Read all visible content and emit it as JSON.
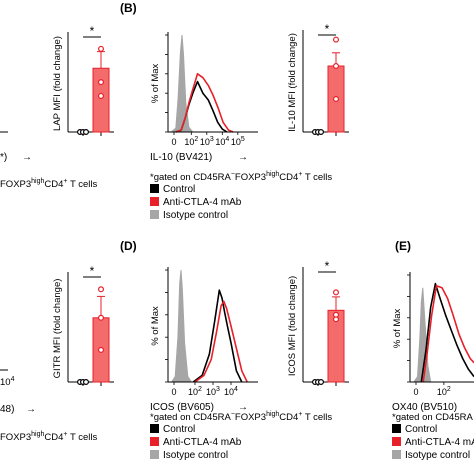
{
  "colors": {
    "control": "#000000",
    "anti": "#e8202a",
    "isotype": "#a6a6a6",
    "bar_fill": "#f36b6b",
    "bar_edge": "#e8202a"
  },
  "legend": {
    "control": "Control",
    "anti": "Anti-CTLA-4 mAb",
    "isotype": "Isotype control"
  },
  "left_fragments": {
    "top_axis_tail": "*)",
    "top_arrow": "→",
    "top_gate": "FOXP3",
    "top_gate_sup": "high",
    "top_gate_tail": "CD4",
    "top_gate_sup2": "+",
    "top_gate_end": " T cells",
    "bottom_tick": "10",
    "bottom_tick_sup": "4",
    "bottom_axis_tail": "48)",
    "bottom_arrow": "→",
    "bottom_gate": "FOXP3",
    "bottom_gate_sup": "high",
    "bottom_gate_tail": "CD4",
    "bottom_gate_sup2": "+",
    "bottom_gate_end": " T cells"
  },
  "chart_data": [
    {
      "type": "bar",
      "ylabel": "LAP MFI (fold change)",
      "categories": [
        "Control",
        "Anti-CTLA-4 mAb"
      ],
      "values": [
        1.0,
        1.23
      ],
      "error": [
        0.0,
        0.06
      ],
      "points": [
        [
          1.0,
          1.0,
          1.0
        ],
        [
          1.18,
          1.3,
          1.13
        ]
      ],
      "significance": "*",
      "ylim": [
        1.0,
        1.35
      ]
    },
    {
      "type": "line",
      "panel": "(B)",
      "marker": "IL-10",
      "ylabel": "% of Max",
      "xlabel": "IL-10  (BV421)",
      "arrow": "→",
      "xticks": [
        {
          "base": "0",
          "exp": ""
        },
        {
          "base": "10",
          "exp": "2"
        },
        {
          "base": "10",
          "exp": "3"
        },
        {
          "base": "10",
          "exp": "4"
        },
        {
          "base": "10",
          "exp": "5"
        }
      ],
      "gate": {
        "prefix": "*gated on CD45RA",
        "minus": "−",
        "foxp3": "FOXP3",
        "high": "high",
        "cd4": "CD4",
        "plus": "+",
        "tail": " T cells"
      },
      "series": [
        {
          "name": "Isotype control",
          "points": [
            [
              -0.3,
              0
            ],
            [
              0.0,
              0.04
            ],
            [
              0.15,
              0.35
            ],
            [
              0.3,
              0.82
            ],
            [
              0.4,
              1.0
            ],
            [
              0.5,
              0.8
            ],
            [
              0.65,
              0.3
            ],
            [
              0.85,
              0.05
            ],
            [
              1.1,
              0
            ]
          ]
        },
        {
          "name": "Control",
          "points": [
            [
              0.0,
              0
            ],
            [
              0.35,
              0.02
            ],
            [
              0.6,
              0.14
            ],
            [
              0.85,
              0.28
            ],
            [
              1.1,
              0.4
            ],
            [
              1.4,
              0.52
            ],
            [
              1.75,
              0.4
            ],
            [
              2.1,
              0.33
            ],
            [
              2.4,
              0.22
            ],
            [
              2.7,
              0.1
            ],
            [
              3.0,
              0.03
            ],
            [
              3.3,
              0
            ]
          ]
        },
        {
          "name": "Anti-CTLA-4 mAb",
          "points": [
            [
              0.0,
              0
            ],
            [
              0.35,
              0.02
            ],
            [
              0.6,
              0.14
            ],
            [
              0.85,
              0.3
            ],
            [
              1.1,
              0.44
            ],
            [
              1.4,
              0.6
            ],
            [
              1.75,
              0.56
            ],
            [
              2.1,
              0.48
            ],
            [
              2.4,
              0.38
            ],
            [
              2.75,
              0.24
            ],
            [
              3.05,
              0.1
            ],
            [
              3.4,
              0.02
            ],
            [
              3.7,
              0
            ]
          ]
        }
      ]
    },
    {
      "type": "bar",
      "ylabel": "IL-10 MFI (fold change)",
      "categories": [
        "Control",
        "Anti-CTLA-4 mAb"
      ],
      "values": [
        1.0,
        1.3
      ],
      "error": [
        0.0,
        0.06
      ],
      "points": [
        [
          1.0,
          1.0,
          1.0
        ],
        [
          1.42,
          1.3,
          1.15
        ]
      ],
      "significance": "*",
      "ylim": [
        1.0,
        1.45
      ]
    },
    {
      "type": "bar",
      "ylabel": "GITR MFI (fold change)",
      "categories": [
        "Control",
        "Anti-CTLA-4 mAb"
      ],
      "values": [
        1.0,
        1.18
      ],
      "error": [
        0.0,
        0.06
      ],
      "points": [
        [
          1.0,
          1.0,
          1.0
        ],
        [
          1.26,
          1.18,
          1.09
        ]
      ],
      "significance": "*",
      "ylim": [
        1.0,
        1.3
      ]
    },
    {
      "type": "line",
      "panel": "(D)",
      "marker": "ICOS",
      "ylabel": "% of Max",
      "xlabel": "ICOS  (BV605)",
      "arrow": "→",
      "xticks": [
        {
          "base": "0",
          "exp": ""
        },
        {
          "base": "10",
          "exp": "2"
        },
        {
          "base": "10",
          "exp": "3"
        },
        {
          "base": "10",
          "exp": "4"
        }
      ],
      "gate": {
        "prefix": "*gated on CD45RA",
        "minus": "−",
        "foxp3": "FOXP3",
        "high": "high",
        "cd4": "CD4",
        "plus": "+",
        "tail": " T cells"
      },
      "series": [
        {
          "name": "Isotype control",
          "points": [
            [
              -0.3,
              0
            ],
            [
              -0.1,
              0.05
            ],
            [
              0.05,
              0.4
            ],
            [
              0.15,
              0.88
            ],
            [
              0.22,
              1.0
            ],
            [
              0.3,
              0.82
            ],
            [
              0.42,
              0.35
            ],
            [
              0.6,
              0.05
            ],
            [
              0.8,
              0
            ]
          ]
        },
        {
          "name": "Control",
          "points": [
            [
              0.9,
              0
            ],
            [
              1.4,
              0.06
            ],
            [
              1.8,
              0.25
            ],
            [
              2.1,
              0.55
            ],
            [
              2.35,
              0.82
            ],
            [
              2.5,
              0.75
            ],
            [
              2.65,
              0.62
            ],
            [
              2.8,
              0.5
            ],
            [
              3.0,
              0.35
            ],
            [
              3.3,
              0.1
            ],
            [
              3.6,
              0
            ]
          ]
        },
        {
          "name": "Anti-CTLA-4 mAb",
          "points": [
            [
              1.0,
              0
            ],
            [
              1.5,
              0.06
            ],
            [
              1.9,
              0.2
            ],
            [
              2.2,
              0.45
            ],
            [
              2.45,
              0.68
            ],
            [
              2.6,
              0.72
            ],
            [
              2.75,
              0.66
            ],
            [
              3.0,
              0.5
            ],
            [
              3.3,
              0.3
            ],
            [
              3.6,
              0.1
            ],
            [
              3.9,
              0
            ]
          ]
        }
      ]
    },
    {
      "type": "bar",
      "ylabel": "ICOS MFI (fold change)",
      "categories": [
        "Control",
        "Anti-CTLA-4 mAb"
      ],
      "values": [
        1.0,
        1.16
      ],
      "error": [
        0.0,
        0.03
      ],
      "points": [
        [
          1.0,
          1.0,
          1.0
        ],
        [
          1.2,
          1.15,
          1.14
        ]
      ],
      "significance": "*",
      "ylim": [
        1.0,
        1.25
      ]
    },
    {
      "type": "line",
      "panel": "(E)",
      "marker": "OX40",
      "ylabel": "% of Max",
      "xlabel": "OX40  (BV510)",
      "arrow": "",
      "xticks": [
        {
          "base": "0",
          "exp": ""
        },
        {
          "base": "10",
          "exp": "2"
        }
      ],
      "gate": {
        "prefix": "*gated on CD45RA",
        "minus": "",
        "foxp3": "",
        "high": "",
        "cd4": "",
        "plus": "",
        "tail": ""
      },
      "series": [
        {
          "name": "Isotype control",
          "points": [
            [
              -0.6,
              0
            ],
            [
              -0.4,
              0.05
            ],
            [
              -0.28,
              0.4
            ],
            [
              -0.2,
              0.75
            ],
            [
              -0.12,
              0.88
            ],
            [
              -0.02,
              0.6
            ],
            [
              0.15,
              0.15
            ],
            [
              0.3,
              0
            ]
          ]
        },
        {
          "name": "Control",
          "points": [
            [
              -0.2,
              0
            ],
            [
              0.05,
              0.3
            ],
            [
              0.3,
              0.7
            ],
            [
              0.55,
              0.92
            ],
            [
              0.8,
              0.78
            ],
            [
              1.1,
              0.62
            ],
            [
              1.4,
              0.48
            ],
            [
              1.7,
              0.34
            ],
            [
              2.0,
              0.22
            ],
            [
              2.3,
              0.12
            ],
            [
              2.6,
              0.05
            ]
          ]
        },
        {
          "name": "Anti-CTLA-4 mAb",
          "points": [
            [
              -0.1,
              0
            ],
            [
              0.1,
              0.25
            ],
            [
              0.35,
              0.62
            ],
            [
              0.6,
              0.9
            ],
            [
              0.9,
              0.88
            ],
            [
              1.2,
              0.78
            ],
            [
              1.5,
              0.62
            ],
            [
              1.8,
              0.45
            ],
            [
              2.1,
              0.32
            ],
            [
              2.4,
              0.22
            ],
            [
              2.6,
              0.18
            ]
          ]
        }
      ]
    }
  ]
}
